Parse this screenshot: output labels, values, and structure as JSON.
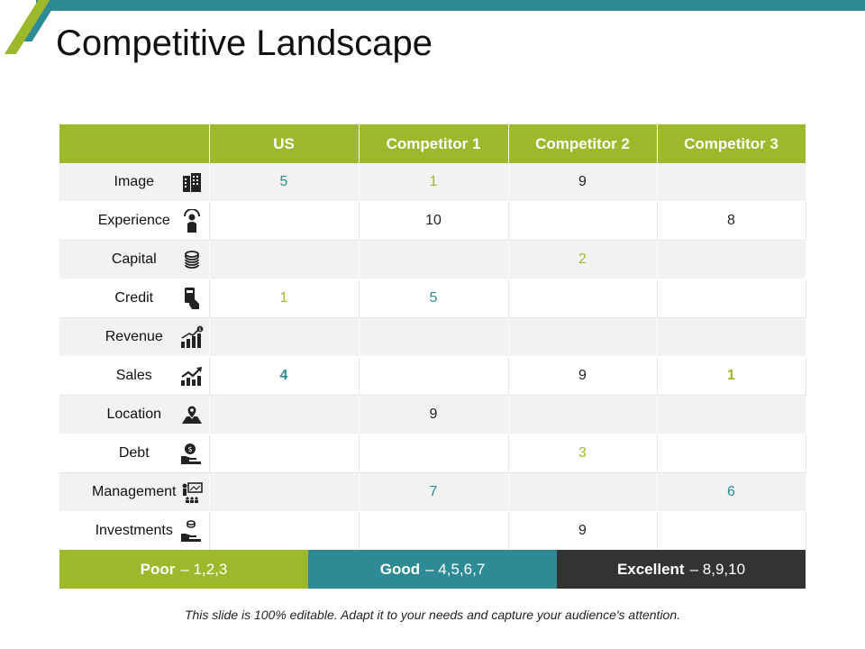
{
  "title": "Competitive Landscape",
  "colors": {
    "green": "#9cb92b",
    "teal": "#2e8b95",
    "dark": "#333333"
  },
  "table": {
    "columns": [
      "",
      "US",
      "Competitor 1",
      "Competitor 2",
      "Competitor 3"
    ],
    "rows": [
      {
        "label": "Image",
        "icon": "building-icon",
        "values": [
          "5",
          "1",
          "9",
          ""
        ],
        "colors": [
          "teal",
          "green",
          "dark",
          ""
        ],
        "bold": [
          false,
          false,
          false,
          false
        ]
      },
      {
        "label": "Experience",
        "icon": "businessman-icon",
        "values": [
          "",
          "10",
          "",
          "8"
        ],
        "colors": [
          "",
          "dark",
          "",
          "dark"
        ],
        "bold": [
          false,
          false,
          false,
          false
        ]
      },
      {
        "label": "Capital",
        "icon": "coin-stack-icon",
        "values": [
          "",
          "",
          "2",
          ""
        ],
        "colors": [
          "",
          "",
          "green",
          ""
        ],
        "bold": [
          false,
          false,
          false,
          false
        ]
      },
      {
        "label": "Credit",
        "icon": "credit-card-hand-icon",
        "values": [
          "1",
          "5",
          "",
          ""
        ],
        "colors": [
          "green",
          "teal",
          "",
          ""
        ],
        "bold": [
          false,
          false,
          false,
          false
        ]
      },
      {
        "label": "Revenue",
        "icon": "revenue-chart-icon",
        "values": [
          "",
          "",
          "",
          ""
        ],
        "colors": [
          "",
          "",
          "",
          ""
        ],
        "bold": [
          false,
          false,
          false,
          false
        ]
      },
      {
        "label": "Sales",
        "icon": "sales-growth-icon",
        "values": [
          "4",
          "",
          "9",
          "1"
        ],
        "colors": [
          "teal",
          "",
          "dark",
          "green"
        ],
        "bold": [
          true,
          false,
          false,
          true
        ]
      },
      {
        "label": "Location",
        "icon": "map-pin-icon",
        "values": [
          "",
          "9",
          "",
          ""
        ],
        "colors": [
          "",
          "dark",
          "",
          ""
        ],
        "bold": [
          false,
          false,
          false,
          false
        ]
      },
      {
        "label": "Debt",
        "icon": "money-hand-icon",
        "values": [
          "",
          "",
          "3",
          ""
        ],
        "colors": [
          "",
          "",
          "green",
          ""
        ],
        "bold": [
          false,
          false,
          false,
          false
        ]
      },
      {
        "label": "Management",
        "icon": "presentation-icon",
        "values": [
          "",
          "7",
          "",
          "6"
        ],
        "colors": [
          "",
          "teal",
          "",
          "teal"
        ],
        "bold": [
          false,
          false,
          false,
          false
        ]
      },
      {
        "label": "Investments",
        "icon": "investment-hand-icon",
        "values": [
          "",
          "",
          "9",
          ""
        ],
        "colors": [
          "",
          "",
          "dark",
          ""
        ],
        "bold": [
          false,
          false,
          false,
          false
        ]
      }
    ]
  },
  "legend": {
    "poor_label": "Poor",
    "poor_range": "– 1,2,3",
    "good_label": "Good",
    "good_range": "– 4,5,6,7",
    "excellent_label": "Excellent",
    "excellent_range": "– 8,9,10"
  },
  "footer": "This slide is 100% editable. Adapt it to your needs and capture your audience's attention."
}
